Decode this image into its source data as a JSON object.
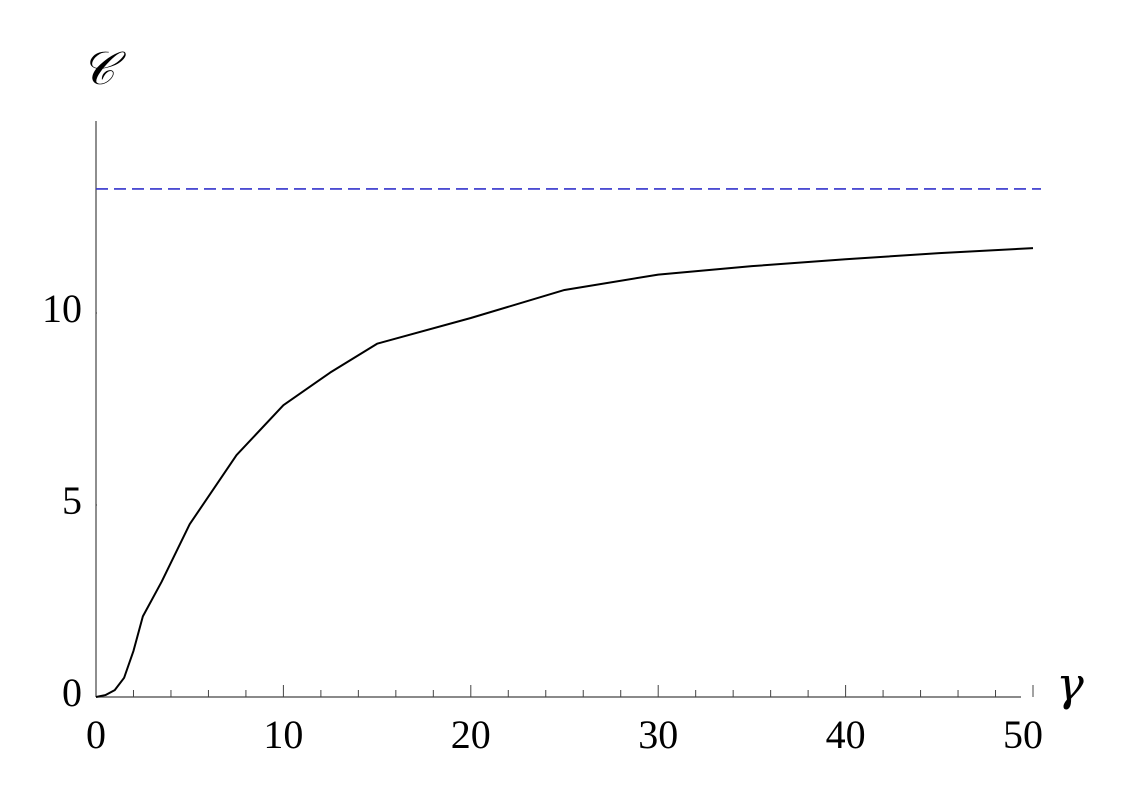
{
  "chart_data": {
    "type": "line",
    "xlabel": "γ",
    "ylabel": "𝒞",
    "x": [
      0,
      0.5,
      1,
      1.5,
      2,
      2.5,
      3.5,
      5,
      7.5,
      10,
      12.5,
      15,
      20,
      25,
      30,
      35,
      40,
      45,
      50
    ],
    "series": [
      {
        "color": "#000000",
        "values": [
          0,
          0.05,
          0.18,
          0.5,
          1.2,
          2.1,
          3.0,
          4.5,
          6.3,
          7.6,
          8.45,
          9.2,
          9.87,
          10.6,
          11.0,
          11.22,
          11.4,
          11.56,
          11.69
        ]
      }
    ],
    "asymptote": 13.23,
    "asymptote_color": "#3333cc",
    "xlim": [
      0,
      50
    ],
    "ylim": [
      0,
      15
    ],
    "xticks": [
      0,
      10,
      20,
      30,
      40,
      50
    ],
    "xminorticks": [
      2,
      4,
      6,
      8,
      12,
      14,
      16,
      18,
      22,
      24,
      26,
      28,
      32,
      34,
      36,
      38,
      42,
      44,
      46,
      48
    ],
    "yticks": [
      0,
      5,
      10
    ]
  }
}
